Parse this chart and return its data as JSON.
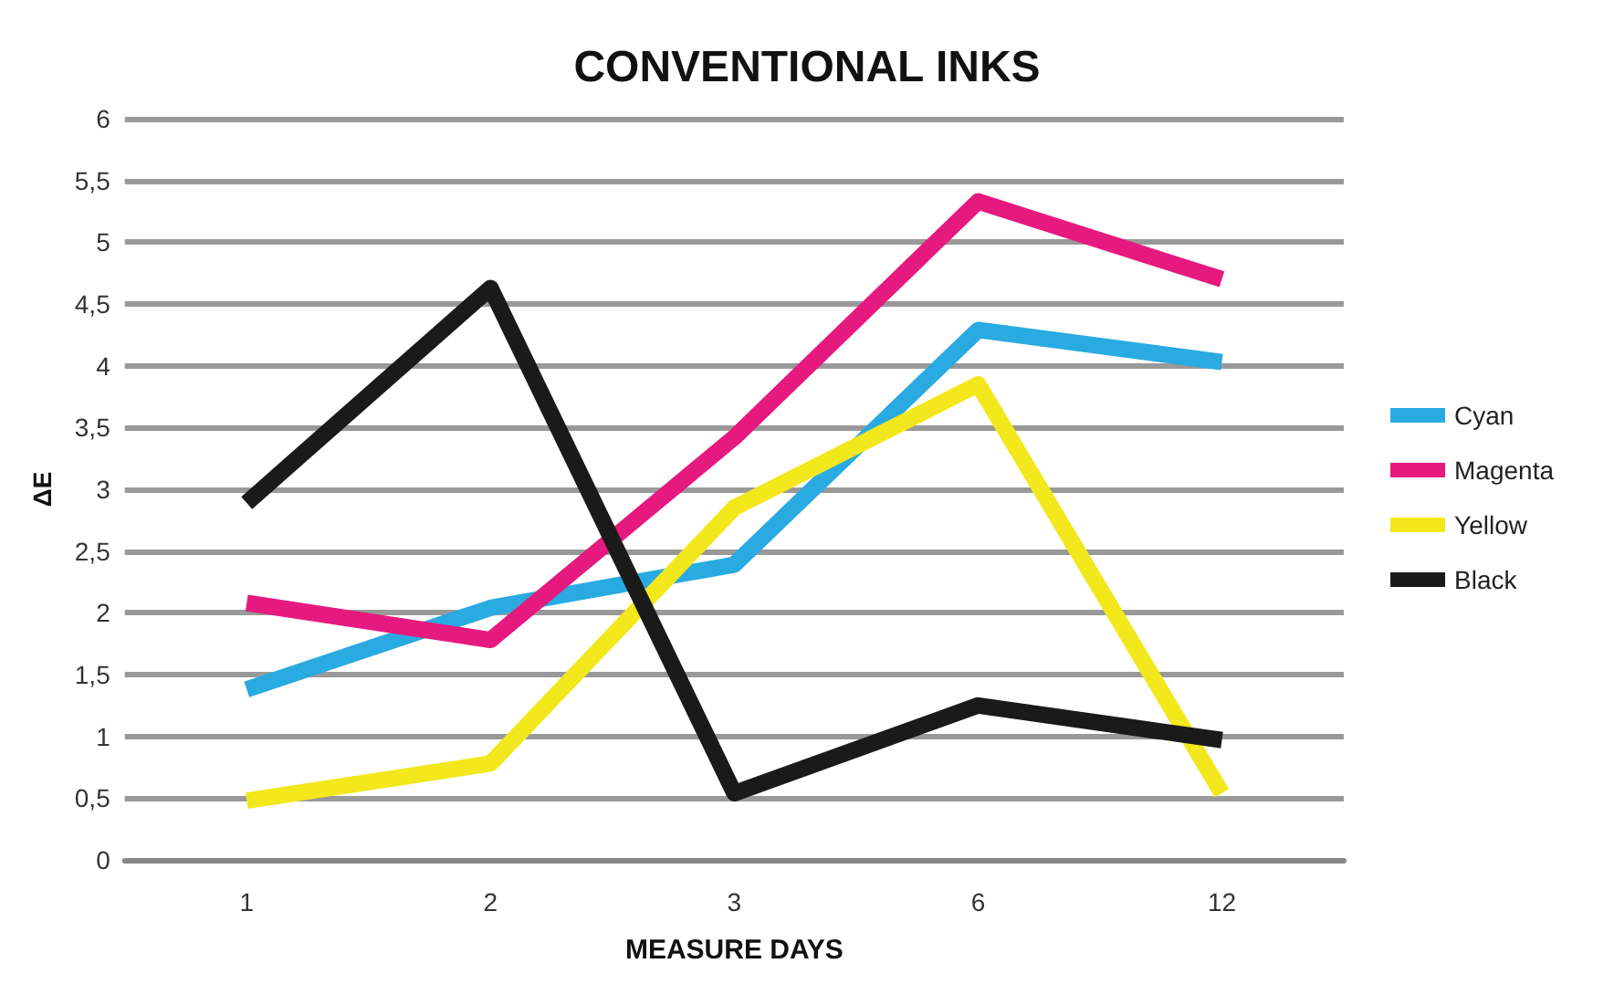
{
  "chart_data": {
    "type": "line",
    "title": "CONVENTIONAL INKS",
    "xlabel": "MEASURE DAYS",
    "ylabel": "ΔE",
    "categories": [
      "1",
      "2",
      "3",
      "6",
      "12"
    ],
    "series": [
      {
        "name": "Cyan",
        "color": "#29aae1",
        "values": [
          1.38,
          2.04,
          2.39,
          4.29,
          4.03
        ]
      },
      {
        "name": "Magenta",
        "color": "#e6197e",
        "values": [
          2.08,
          1.78,
          3.42,
          5.33,
          4.7
        ]
      },
      {
        "name": "Yellow",
        "color": "#f2e81c",
        "values": [
          0.48,
          0.78,
          2.85,
          3.85,
          0.54
        ]
      },
      {
        "name": "Black",
        "color": "#1a1a1a",
        "values": [
          2.89,
          4.63,
          0.54,
          1.25,
          0.97
        ]
      }
    ],
    "ylim": [
      0,
      6
    ],
    "yticks": [
      0,
      {
        "value": 0.5,
        "label": "0,5"
      },
      1,
      {
        "value": 1.5,
        "label": "1,5"
      },
      2,
      {
        "value": 2.5,
        "label": "2,5"
      },
      3,
      {
        "value": 3.5,
        "label": "3,5"
      },
      4,
      {
        "value": 4.5,
        "label": "4,5"
      },
      5,
      {
        "value": 5.5,
        "label": "5,5"
      },
      6
    ],
    "grid": "y",
    "legend": "right",
    "marker": "none",
    "line_style": "solid"
  }
}
